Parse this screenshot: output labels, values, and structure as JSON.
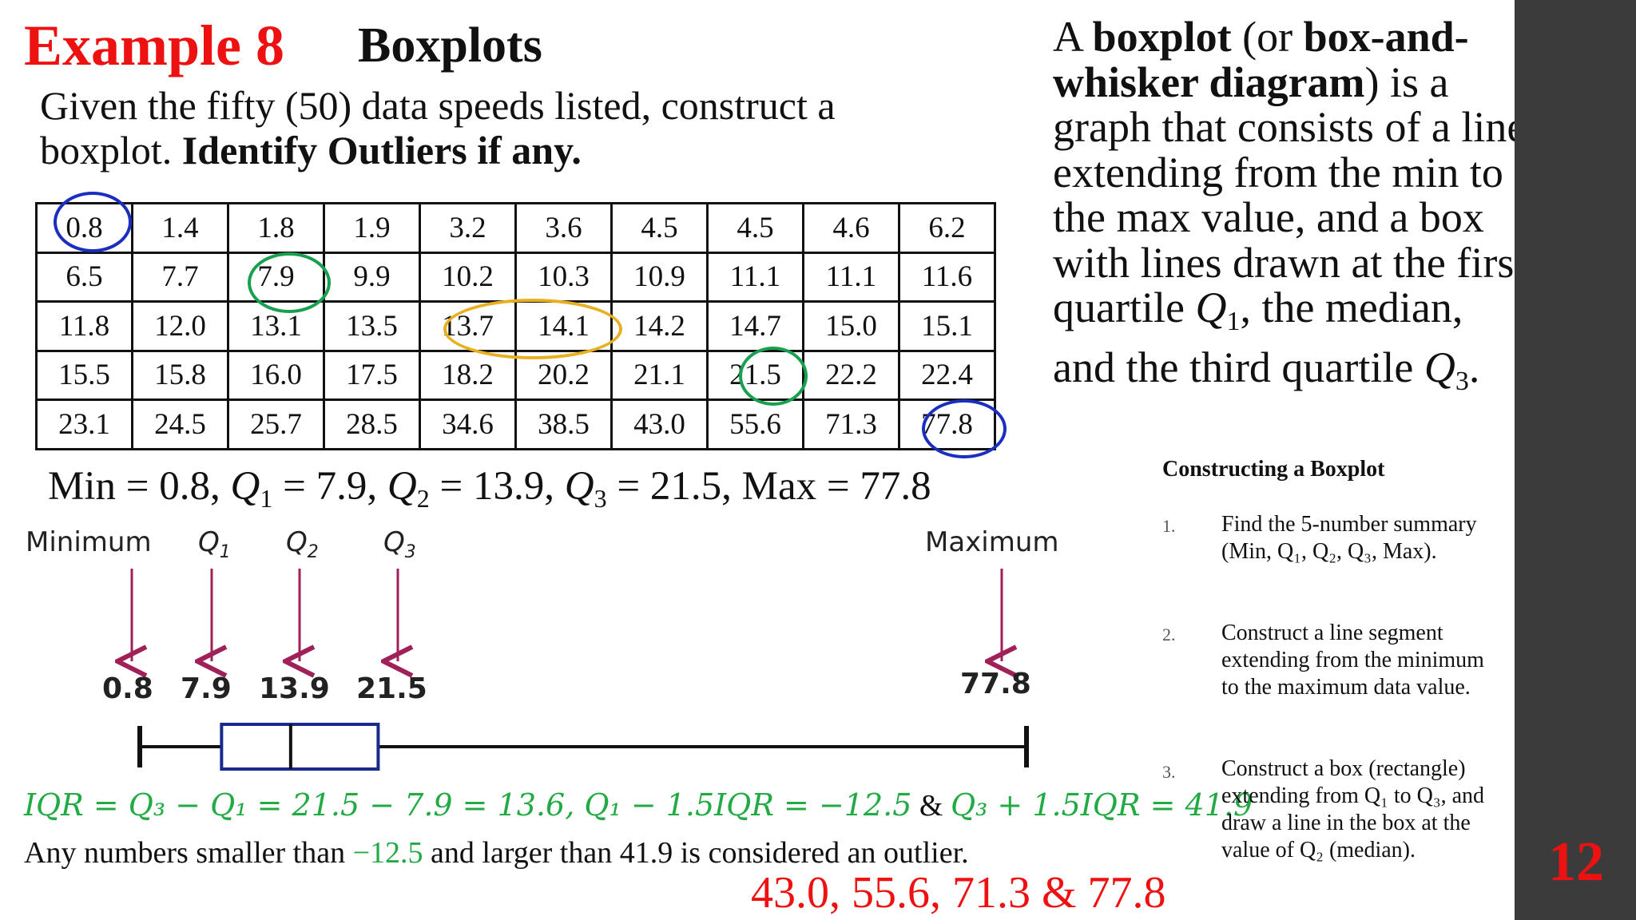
{
  "header": {
    "example_label": "Example 8",
    "topic": "Boxplots",
    "instruction_plain": "Given the fifty (50) data speeds listed, construct a boxplot. ",
    "instruction_bold": "Identify Outliers if any."
  },
  "table": {
    "rows": [
      [
        "0.8",
        "1.4",
        "1.8",
        "1.9",
        "3.2",
        "3.6",
        "4.5",
        "4.5",
        "4.6",
        "6.2"
      ],
      [
        "6.5",
        "7.7",
        "7.9",
        "9.9",
        "10.2",
        "10.3",
        "10.9",
        "11.1",
        "11.1",
        "11.6"
      ],
      [
        "11.8",
        "12.0",
        "13.1",
        "13.5",
        "13.7",
        "14.1",
        "14.2",
        "14.7",
        "15.0",
        "15.1"
      ],
      [
        "15.5",
        "15.8",
        "16.0",
        "17.5",
        "18.2",
        "20.2",
        "21.1",
        "21.5",
        "22.2",
        "22.4"
      ],
      [
        "23.1",
        "24.5",
        "25.7",
        "28.5",
        "34.6",
        "38.5",
        "43.0",
        "55.6",
        "71.3",
        "77.8"
      ]
    ],
    "highlight_colors": {
      "minmax": "#1a2fbf",
      "quartile": "#18a050",
      "median": "#e8b020"
    }
  },
  "summary": {
    "min_part": "Min = 0.8,",
    "q1_part": " = 7.9,",
    "q2_part": " = 13.9,",
    "q3_part": " = 21.5, Max = 77.8"
  },
  "diagram": {
    "labels": {
      "minimum": "Minimum",
      "q1": "Q",
      "q2": "Q",
      "q3": "Q",
      "maximum": "Maximum"
    },
    "subscripts": {
      "q1": "1",
      "q2": "2",
      "q3": "3"
    },
    "values": {
      "min": "0.8",
      "q1": "7.9",
      "median": "13.9",
      "q3": "21.5",
      "max": "77.8"
    },
    "stats": {
      "min": 0.8,
      "q1": 7.9,
      "median": 13.9,
      "q3": 21.5,
      "max": 77.8
    },
    "arrow_color": "#a0205a",
    "box_color": "#1a2a8a"
  },
  "formulas": {
    "iqr": "IQR = Q₃ − Q₁ = 21.5 − 7.9 = 13.6, Q₁ − 1.5IQR = −12.5",
    "amp": " & ",
    "upper": "Q₃ + 1.5IQR = 41.9",
    "rule_a": "Any numbers smaller than ",
    "rule_neg": "−12.5",
    "rule_b": " and larger than 41.9 is considered an outlier.",
    "outliers": "43.0, 55.6, 71.3 &  77.8"
  },
  "definition": {
    "t1": "A ",
    "b1": "boxplot",
    "t2": " (or ",
    "b2": "box-and-whisker diagram",
    "t3": ") is a graph that consists of a line extending from the min to the max value, and a box with lines drawn at the first quartile ",
    "q": "Q",
    "s1": "1",
    "t4": ", the median, and the third quartile ",
    "s3": "3",
    "t5": "."
  },
  "steps": {
    "title": "Constructing a Boxplot",
    "items": [
      {
        "num": "1.",
        "text": "Find the 5-number summary (Min, Q₁, Q₂, Q₃, Max)."
      },
      {
        "num": "2.",
        "text": "Construct a line segment extending from the minimum to the maximum data value."
      },
      {
        "num": "3.",
        "text": "Construct a box (rectangle) extending from Q₁ to Q₃, and draw a line in the box at the value of Q₂ (median)."
      }
    ]
  },
  "page": {
    "number": "12",
    "bar_color": "#3b3b3b"
  }
}
